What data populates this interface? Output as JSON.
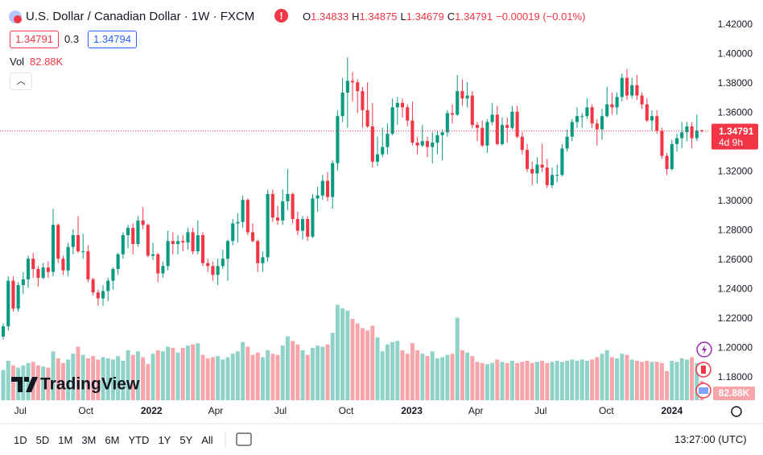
{
  "header": {
    "title": "U.S. Dollar / Canadian Dollar · 1W · FXCM",
    "ohlc_labels": [
      "O",
      "H",
      "L",
      "C"
    ],
    "change": "−0.00019 (−0.01%)",
    "bid": "1.34791",
    "spread": "0.3",
    "ask": "1.34794",
    "volume_label": "Vol"
  },
  "chart_data": {
    "type": "candlestick",
    "colors": {
      "up": "#089981",
      "down": "#f23645",
      "volume_up": "#8fd2c8",
      "volume_down": "#f7a5ab"
    },
    "candles": [
      [
        1.208,
        1.217,
        1.206,
        1.215,
        130
      ],
      [
        1.215,
        1.249,
        1.212,
        1.246,
        170
      ],
      [
        1.246,
        1.249,
        1.225,
        1.227,
        150
      ],
      [
        1.227,
        1.245,
        1.225,
        1.243,
        140
      ],
      [
        1.243,
        1.252,
        1.237,
        1.247,
        150
      ],
      [
        1.247,
        1.263,
        1.241,
        1.261,
        160
      ],
      [
        1.261,
        1.265,
        1.248,
        1.254,
        165
      ],
      [
        1.254,
        1.256,
        1.242,
        1.248,
        150
      ],
      [
        1.248,
        1.258,
        1.247,
        1.255,
        145
      ],
      [
        1.255,
        1.259,
        1.248,
        1.252,
        140
      ],
      [
        1.252,
        1.295,
        1.249,
        1.284,
        210
      ],
      [
        1.284,
        1.285,
        1.258,
        1.261,
        180
      ],
      [
        1.261,
        1.263,
        1.25,
        1.253,
        160
      ],
      [
        1.253,
        1.272,
        1.249,
        1.269,
        175
      ],
      [
        1.269,
        1.281,
        1.264,
        1.277,
        200
      ],
      [
        1.277,
        1.29,
        1.265,
        1.266,
        230
      ],
      [
        1.266,
        1.278,
        1.261,
        1.266,
        195
      ],
      [
        1.266,
        1.27,
        1.245,
        1.247,
        180
      ],
      [
        1.247,
        1.248,
        1.236,
        1.238,
        190
      ],
      [
        1.238,
        1.24,
        1.229,
        1.234,
        175
      ],
      [
        1.234,
        1.243,
        1.229,
        1.239,
        185
      ],
      [
        1.239,
        1.248,
        1.232,
        1.246,
        180
      ],
      [
        1.246,
        1.255,
        1.24,
        1.254,
        175
      ],
      [
        1.254,
        1.265,
        1.25,
        1.264,
        190
      ],
      [
        1.264,
        1.279,
        1.261,
        1.277,
        170
      ],
      [
        1.277,
        1.284,
        1.268,
        1.282,
        215
      ],
      [
        1.282,
        1.285,
        1.264,
        1.271,
        195
      ],
      [
        1.271,
        1.29,
        1.269,
        1.287,
        210
      ],
      [
        1.287,
        1.296,
        1.281,
        1.284,
        185
      ],
      [
        1.284,
        1.285,
        1.262,
        1.263,
        155
      ],
      [
        1.263,
        1.272,
        1.26,
        1.264,
        200
      ],
      [
        1.264,
        1.265,
        1.245,
        1.251,
        215
      ],
      [
        1.251,
        1.259,
        1.248,
        1.256,
        210
      ],
      [
        1.256,
        1.28,
        1.253,
        1.273,
        230
      ],
      [
        1.273,
        1.279,
        1.264,
        1.271,
        225
      ],
      [
        1.271,
        1.277,
        1.264,
        1.273,
        205
      ],
      [
        1.273,
        1.277,
        1.266,
        1.272,
        225
      ],
      [
        1.272,
        1.282,
        1.267,
        1.279,
        235
      ],
      [
        1.279,
        1.282,
        1.264,
        1.266,
        240
      ],
      [
        1.266,
        1.287,
        1.264,
        1.277,
        245
      ],
      [
        1.277,
        1.279,
        1.256,
        1.258,
        195
      ],
      [
        1.258,
        1.261,
        1.252,
        1.256,
        180
      ],
      [
        1.256,
        1.259,
        1.246,
        1.25,
        185
      ],
      [
        1.25,
        1.261,
        1.243,
        1.256,
        190
      ],
      [
        1.256,
        1.267,
        1.254,
        1.261,
        175
      ],
      [
        1.261,
        1.274,
        1.246,
        1.273,
        185
      ],
      [
        1.273,
        1.288,
        1.27,
        1.285,
        200
      ],
      [
        1.285,
        1.292,
        1.272,
        1.286,
        210
      ],
      [
        1.286,
        1.304,
        1.282,
        1.301,
        250
      ],
      [
        1.301,
        1.302,
        1.277,
        1.279,
        230
      ],
      [
        1.279,
        1.285,
        1.272,
        1.273,
        195
      ],
      [
        1.273,
        1.274,
        1.252,
        1.258,
        205
      ],
      [
        1.258,
        1.266,
        1.252,
        1.262,
        185
      ],
      [
        1.262,
        1.308,
        1.259,
        1.305,
        215
      ],
      [
        1.305,
        1.308,
        1.286,
        1.289,
        200
      ],
      [
        1.289,
        1.297,
        1.284,
        1.287,
        195
      ],
      [
        1.287,
        1.308,
        1.284,
        1.3,
        235
      ],
      [
        1.3,
        1.322,
        1.294,
        1.305,
        275
      ],
      [
        1.305,
        1.306,
        1.285,
        1.288,
        255
      ],
      [
        1.288,
        1.293,
        1.277,
        1.28,
        240
      ],
      [
        1.28,
        1.29,
        1.274,
        1.288,
        215
      ],
      [
        1.288,
        1.29,
        1.273,
        1.276,
        195
      ],
      [
        1.276,
        1.305,
        1.275,
        1.302,
        225
      ],
      [
        1.302,
        1.31,
        1.293,
        1.304,
        235
      ],
      [
        1.304,
        1.318,
        1.301,
        1.314,
        230
      ],
      [
        1.314,
        1.32,
        1.3,
        1.303,
        240
      ],
      [
        1.303,
        1.328,
        1.295,
        1.326,
        290
      ],
      [
        1.326,
        1.362,
        1.321,
        1.358,
        410
      ],
      [
        1.358,
        1.384,
        1.354,
        1.374,
        395
      ],
      [
        1.374,
        1.398,
        1.35,
        1.382,
        385
      ],
      [
        1.382,
        1.388,
        1.368,
        1.381,
        350
      ],
      [
        1.381,
        1.383,
        1.36,
        1.375,
        330
      ],
      [
        1.375,
        1.378,
        1.35,
        1.362,
        310
      ],
      [
        1.362,
        1.381,
        1.35,
        1.351,
        300
      ],
      [
        1.351,
        1.367,
        1.323,
        1.327,
        320
      ],
      [
        1.327,
        1.344,
        1.324,
        1.332,
        270
      ],
      [
        1.332,
        1.35,
        1.33,
        1.337,
        210
      ],
      [
        1.337,
        1.353,
        1.332,
        1.346,
        240
      ],
      [
        1.346,
        1.37,
        1.345,
        1.364,
        250
      ],
      [
        1.364,
        1.371,
        1.352,
        1.367,
        255
      ],
      [
        1.367,
        1.37,
        1.357,
        1.364,
        215
      ],
      [
        1.364,
        1.366,
        1.351,
        1.355,
        200
      ],
      [
        1.355,
        1.368,
        1.338,
        1.34,
        245
      ],
      [
        1.34,
        1.344,
        1.332,
        1.338,
        215
      ],
      [
        1.338,
        1.352,
        1.337,
        1.341,
        200
      ],
      [
        1.341,
        1.344,
        1.33,
        1.337,
        190
      ],
      [
        1.337,
        1.347,
        1.326,
        1.34,
        210
      ],
      [
        1.34,
        1.348,
        1.332,
        1.345,
        180
      ],
      [
        1.345,
        1.349,
        1.328,
        1.347,
        185
      ],
      [
        1.347,
        1.362,
        1.344,
        1.36,
        195
      ],
      [
        1.36,
        1.366,
        1.353,
        1.359,
        200
      ],
      [
        1.359,
        1.386,
        1.358,
        1.375,
        355
      ],
      [
        1.375,
        1.383,
        1.365,
        1.37,
        215
      ],
      [
        1.37,
        1.381,
        1.364,
        1.372,
        205
      ],
      [
        1.372,
        1.375,
        1.35,
        1.352,
        190
      ],
      [
        1.352,
        1.354,
        1.341,
        1.35,
        165
      ],
      [
        1.35,
        1.355,
        1.337,
        1.338,
        160
      ],
      [
        1.338,
        1.356,
        1.333,
        1.354,
        155
      ],
      [
        1.354,
        1.367,
        1.352,
        1.359,
        160
      ],
      [
        1.359,
        1.365,
        1.338,
        1.339,
        175
      ],
      [
        1.339,
        1.357,
        1.338,
        1.352,
        165
      ],
      [
        1.352,
        1.357,
        1.34,
        1.35,
        160
      ],
      [
        1.35,
        1.365,
        1.349,
        1.361,
        170
      ],
      [
        1.361,
        1.365,
        1.343,
        1.344,
        160
      ],
      [
        1.344,
        1.347,
        1.332,
        1.335,
        165
      ],
      [
        1.335,
        1.339,
        1.32,
        1.322,
        170
      ],
      [
        1.322,
        1.327,
        1.311,
        1.319,
        160
      ],
      [
        1.319,
        1.33,
        1.312,
        1.325,
        165
      ],
      [
        1.325,
        1.339,
        1.32,
        1.323,
        170
      ],
      [
        1.323,
        1.329,
        1.309,
        1.311,
        160
      ],
      [
        1.311,
        1.323,
        1.309,
        1.318,
        165
      ],
      [
        1.318,
        1.325,
        1.313,
        1.318,
        170
      ],
      [
        1.318,
        1.339,
        1.317,
        1.336,
        165
      ],
      [
        1.336,
        1.349,
        1.334,
        1.344,
        170
      ],
      [
        1.344,
        1.356,
        1.341,
        1.354,
        175
      ],
      [
        1.354,
        1.364,
        1.35,
        1.358,
        170
      ],
      [
        1.358,
        1.36,
        1.35,
        1.358,
        175
      ],
      [
        1.358,
        1.37,
        1.356,
        1.364,
        170
      ],
      [
        1.364,
        1.366,
        1.35,
        1.353,
        175
      ],
      [
        1.353,
        1.356,
        1.338,
        1.349,
        185
      ],
      [
        1.349,
        1.363,
        1.342,
        1.358,
        200
      ],
      [
        1.358,
        1.378,
        1.357,
        1.366,
        215
      ],
      [
        1.366,
        1.374,
        1.359,
        1.364,
        185
      ],
      [
        1.364,
        1.374,
        1.359,
        1.371,
        180
      ],
      [
        1.371,
        1.387,
        1.368,
        1.384,
        200
      ],
      [
        1.384,
        1.39,
        1.369,
        1.372,
        195
      ],
      [
        1.372,
        1.384,
        1.37,
        1.379,
        175
      ],
      [
        1.379,
        1.386,
        1.369,
        1.372,
        170
      ],
      [
        1.372,
        1.374,
        1.363,
        1.366,
        165
      ],
      [
        1.366,
        1.37,
        1.354,
        1.355,
        170
      ],
      [
        1.355,
        1.362,
        1.348,
        1.358,
        165
      ],
      [
        1.358,
        1.362,
        1.346,
        1.348,
        165
      ],
      [
        1.348,
        1.35,
        1.329,
        1.331,
        160
      ],
      [
        1.331,
        1.333,
        1.318,
        1.322,
        125
      ],
      [
        1.322,
        1.342,
        1.321,
        1.339,
        170
      ],
      [
        1.339,
        1.346,
        1.334,
        1.343,
        165
      ],
      [
        1.343,
        1.354,
        1.336,
        1.347,
        180
      ],
      [
        1.347,
        1.354,
        1.341,
        1.351,
        175
      ],
      [
        1.351,
        1.354,
        1.336,
        1.343,
        185
      ],
      [
        1.343,
        1.359,
        1.341,
        1.3481,
        160
      ],
      [
        1.34833,
        1.34875,
        1.34679,
        1.34791,
        82.88
      ]
    ],
    "last_volume_label": "82.88K",
    "countdown": "4d 9h",
    "xlim": [
      -0.65,
      141.29
    ],
    "xticks": [
      {
        "value": 3.43,
        "label": "Jul"
      },
      {
        "value": 16.57,
        "label": "Oct"
      },
      {
        "value": 29.71,
        "label": "2022"
      },
      {
        "value": 42.57,
        "label": "Apr"
      },
      {
        "value": 55.57,
        "label": "Jul"
      },
      {
        "value": 68.71,
        "label": "Oct"
      },
      {
        "value": 81.86,
        "label": "2023"
      },
      {
        "value": 94.71,
        "label": "Apr"
      },
      {
        "value": 107.71,
        "label": "Jul"
      },
      {
        "value": 120.86,
        "label": "Oct"
      },
      {
        "value": 134,
        "label": "2024"
      }
    ],
    "ylim": [
      1.1647,
      1.437
    ],
    "yticks": [
      {
        "value": 1.18,
        "label": "1.18000"
      },
      {
        "value": 1.2,
        "label": "1.20000"
      },
      {
        "value": 1.22,
        "label": "1.22000"
      },
      {
        "value": 1.24,
        "label": "1.24000"
      },
      {
        "value": 1.26,
        "label": "1.26000"
      },
      {
        "value": 1.28,
        "label": "1.28000"
      },
      {
        "value": 1.3,
        "label": "1.30000"
      },
      {
        "value": 1.32,
        "label": "1.32000"
      },
      {
        "value": 1.34,
        "label": "1.34000"
      },
      {
        "value": 1.36,
        "label": "1.36000"
      },
      {
        "value": 1.38,
        "label": "1.38000"
      },
      {
        "value": 1.4,
        "label": "1.40000"
      },
      {
        "value": 1.42,
        "label": "1.42000"
      }
    ],
    "y2lim": [
      0,
      450
    ]
  },
  "logo": "TradingView",
  "toolbar": {
    "ranges": [
      "1D",
      "5D",
      "1M",
      "3M",
      "6M",
      "YTD",
      "1Y",
      "5Y",
      "All"
    ],
    "time": "13:27:00 (UTC)"
  }
}
